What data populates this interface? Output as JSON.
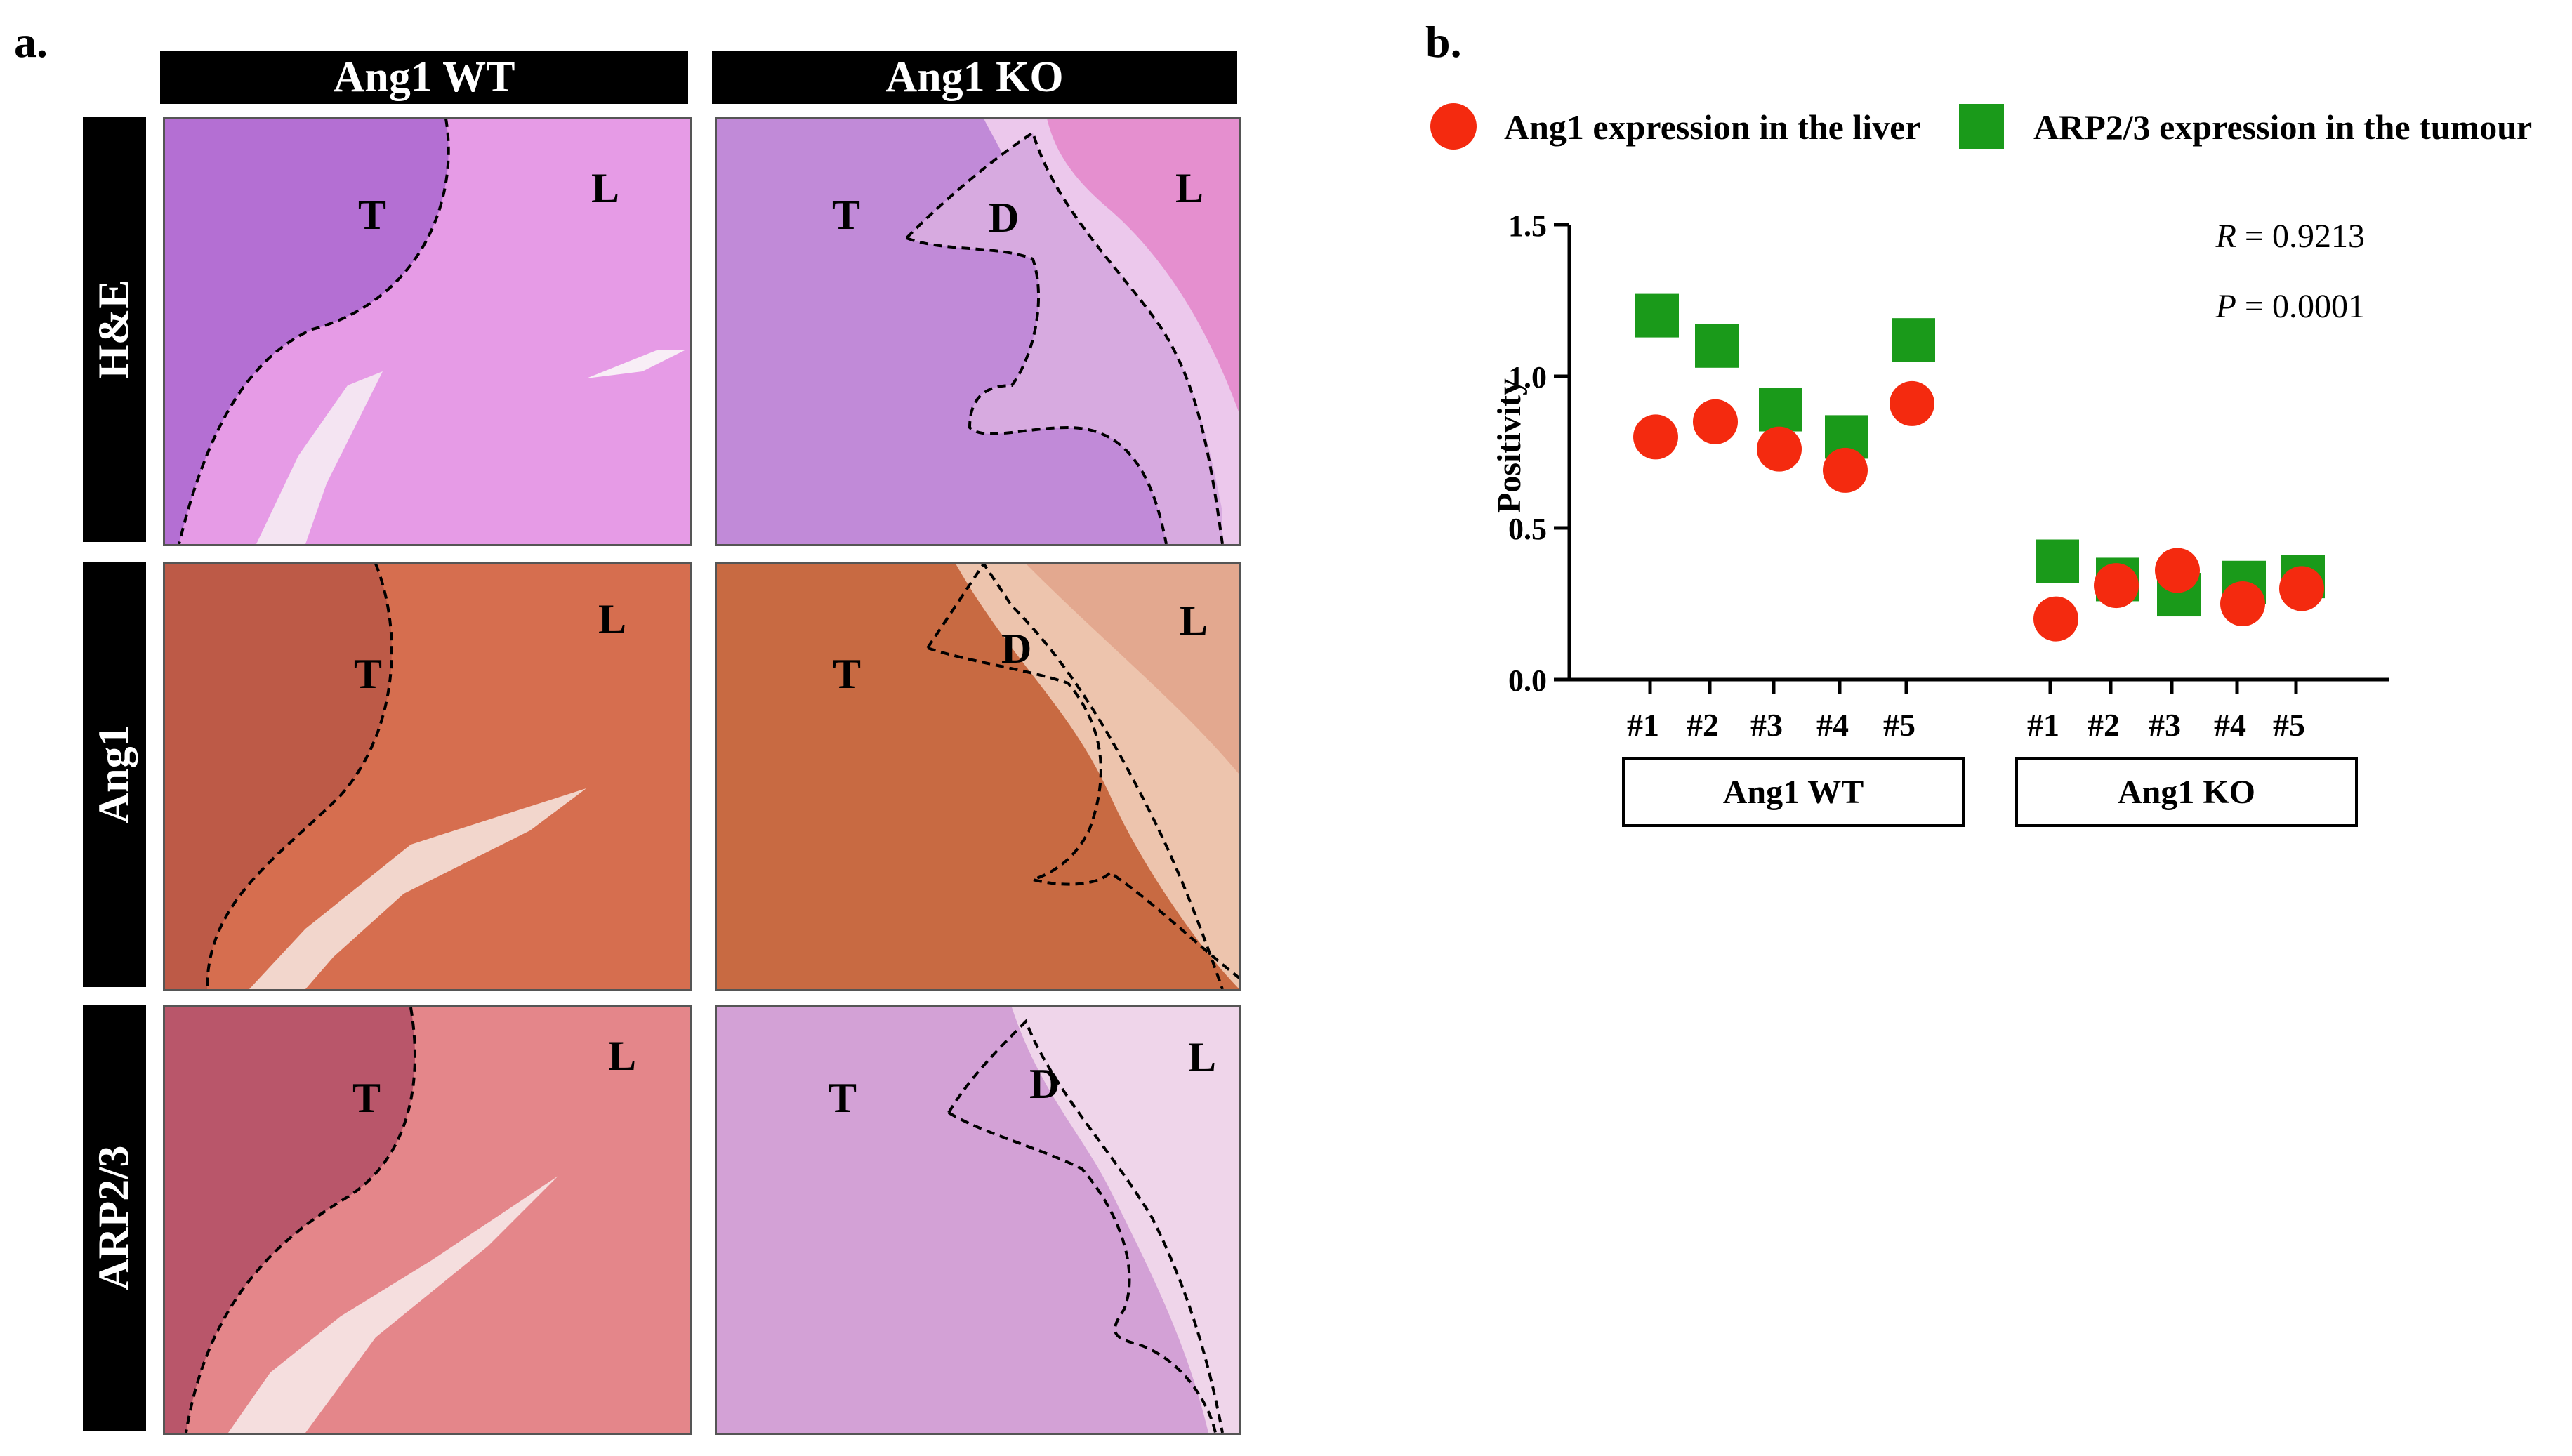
{
  "figure": {
    "panel_a_label": "a.",
    "panel_b_label": "b.",
    "column_headers": [
      "Ang1 WT",
      "Ang1 KO"
    ],
    "row_headers": [
      "H&E",
      "Ang1",
      "ARP2/3"
    ],
    "micrograph_labels": {
      "tumour": "T",
      "liver": "L",
      "dormant": "D"
    },
    "colors": {
      "he_stain": "#c070d8",
      "ang1_stain": "#d8704f",
      "arp_stain": "#d88a8f",
      "ang1_series": "#f42a0f",
      "arp_series": "#1a9a1a"
    }
  },
  "chart_data": {
    "type": "scatter",
    "title": "",
    "xlabel": "",
    "ylabel": "Positivity",
    "ylim": [
      0.0,
      1.5
    ],
    "yticks": [
      "0.0",
      "0.5",
      "1.0",
      "1.5"
    ],
    "legend_position": "top",
    "groups": [
      {
        "name": "Ang1 WT",
        "categories": [
          "#1",
          "#2",
          "#3",
          "#4",
          "#5"
        ]
      },
      {
        "name": "Ang1 KO",
        "categories": [
          "#1",
          "#2",
          "#3",
          "#4",
          "#5"
        ]
      }
    ],
    "series": [
      {
        "name": "Ang1 expression in the liver",
        "marker": "circle",
        "color": "#f42a0f",
        "values": [
          0.8,
          0.85,
          0.76,
          0.69,
          0.91,
          0.2,
          0.31,
          0.36,
          0.25,
          0.3
        ]
      },
      {
        "name": "ARP2/3 expression in the tumour",
        "marker": "square",
        "color": "#1a9a1a",
        "values": [
          1.2,
          1.1,
          0.89,
          0.8,
          1.12,
          0.39,
          0.33,
          0.28,
          0.32,
          0.34
        ]
      }
    ],
    "annotations": [
      {
        "italic": "R",
        "text": " = 0.9213"
      },
      {
        "italic": "P",
        "text": " = 0.0001"
      }
    ]
  }
}
